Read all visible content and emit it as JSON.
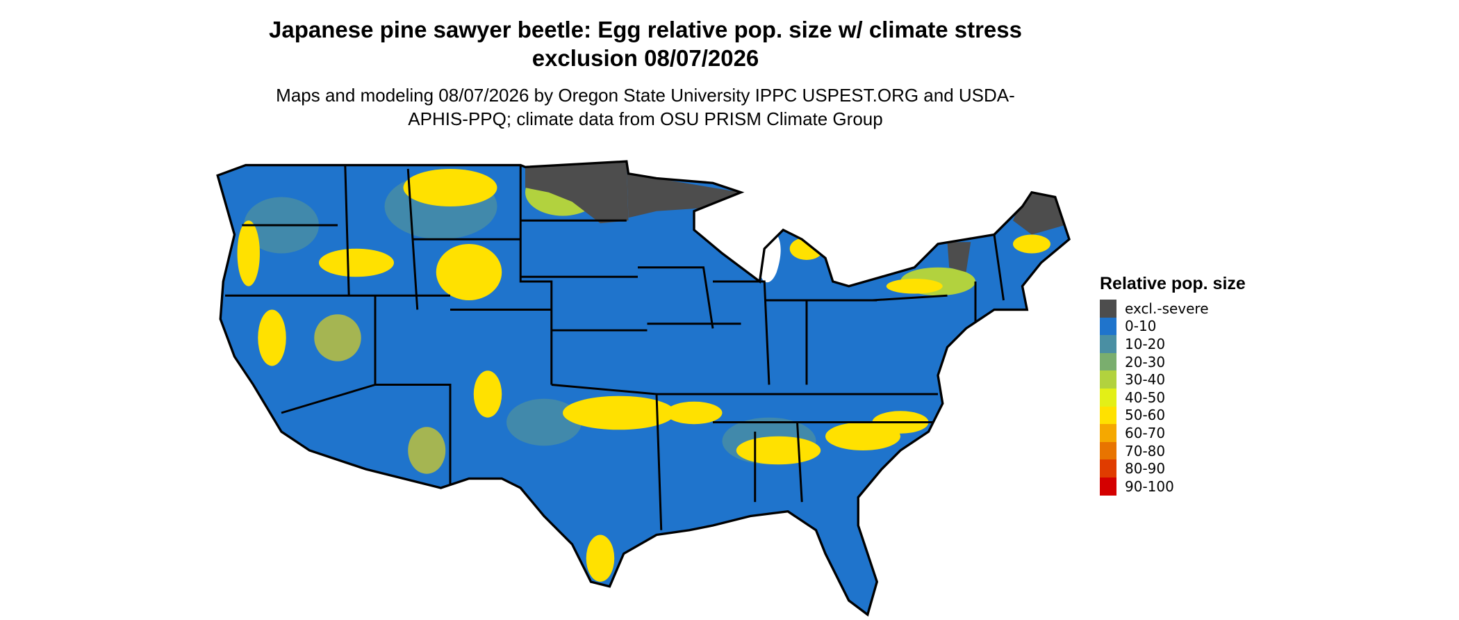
{
  "map": {
    "title": "Japanese pine sawyer beetle: Egg relative pop. size w/ climate stress exclusion 08/07/2026",
    "subtitle": "Maps and modeling 08/07/2026 by Oregon State University IPPC USPEST.ORG and USDA-APHIS-PPQ; climate data from OSU PRISM Climate Group",
    "legend": {
      "title": "Relative pop. size",
      "items": [
        {
          "label": "excl.-severe",
          "color": "#4d4d4d"
        },
        {
          "label": "0-10",
          "color": "#1f74cc"
        },
        {
          "label": "10-20",
          "color": "#4a8fa3"
        },
        {
          "label": "20-30",
          "color": "#7aae6e"
        },
        {
          "label": "30-40",
          "color": "#b2d23e"
        },
        {
          "label": "40-50",
          "color": "#e3ef17"
        },
        {
          "label": "50-60",
          "color": "#ffe100"
        },
        {
          "label": "60-70",
          "color": "#f5a800"
        },
        {
          "label": "70-80",
          "color": "#e87400"
        },
        {
          "label": "80-90",
          "color": "#e03c00"
        },
        {
          "label": "90-100",
          "color": "#d40000"
        }
      ]
    }
  }
}
